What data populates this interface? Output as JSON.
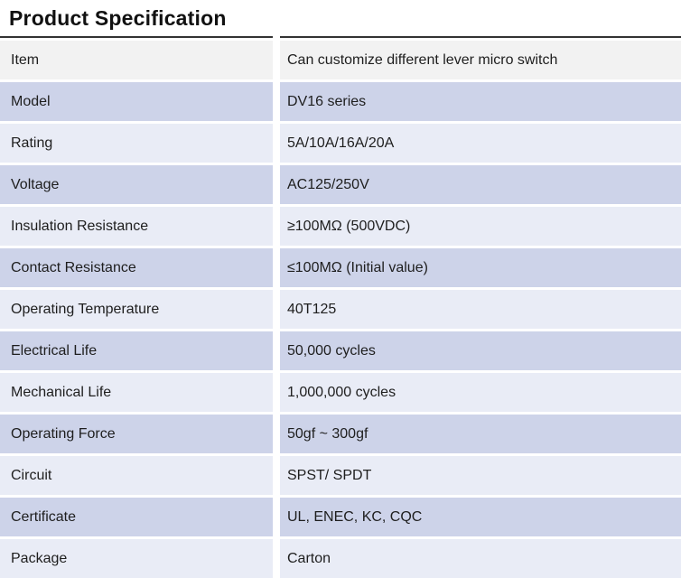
{
  "title": "Product Specification",
  "colors": {
    "header_row_bg": "#f2f2f2",
    "row_dark_bg": "#cdd3e9",
    "row_light_bg": "#e9ecf6",
    "table_top_border": "#333333",
    "text": "#1e1e1e",
    "page_bg": "#ffffff"
  },
  "table": {
    "rows": [
      {
        "label": "Item",
        "value": "Can customize different lever micro switch"
      },
      {
        "label": "Model",
        "value": "DV16 series"
      },
      {
        "label": "Rating",
        "value": "5A/10A/16A/20A"
      },
      {
        "label": "Voltage",
        "value": "AC125/250V"
      },
      {
        "label": "Insulation Resistance",
        "value": "≥100MΩ (500VDC)"
      },
      {
        "label": "Contact Resistance",
        "value": "≤100MΩ (Initial value)"
      },
      {
        "label": "Operating Temperature",
        "value": "40T125"
      },
      {
        "label": "Electrical Life",
        "value": "50,000 cycles"
      },
      {
        "label": "Mechanical Life",
        "value": "1,000,000 cycles"
      },
      {
        "label": "Operating Force",
        "value": "50gf ~ 300gf"
      },
      {
        "label": "Circuit",
        "value": "SPST/ SPDT"
      },
      {
        "label": "Certificate",
        "value": "UL, ENEC, KC, CQC"
      },
      {
        "label": "Package",
        "value": "Carton"
      }
    ]
  }
}
